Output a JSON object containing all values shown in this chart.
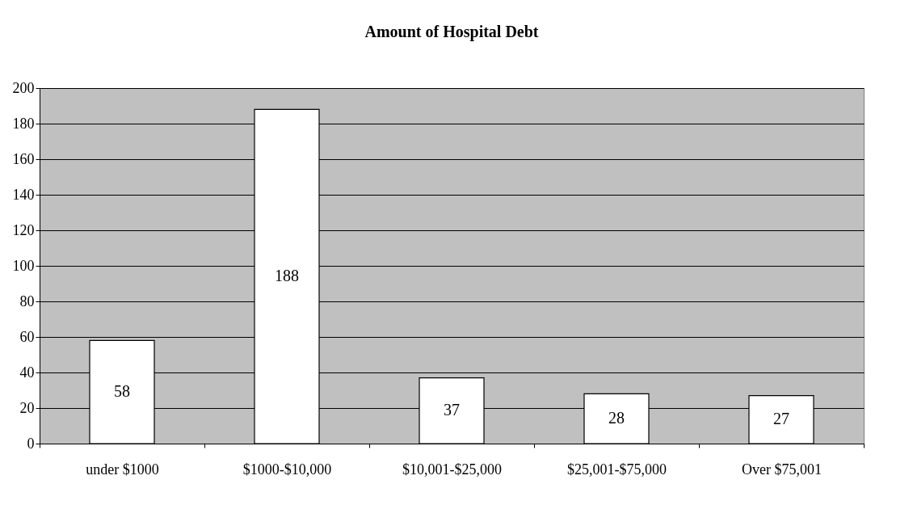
{
  "chart_data": {
    "type": "bar",
    "title": "Amount of Hospital Debt",
    "categories": [
      "under $1000",
      "$1000-$10,000",
      "$10,001-$25,000",
      "$25,001-$75,000",
      "Over $75,001"
    ],
    "values": [
      58,
      188,
      37,
      28,
      27
    ],
    "color": "#ffffff",
    "ylim": [
      0,
      200
    ],
    "yticks": [
      0,
      20,
      40,
      60,
      80,
      100,
      120,
      140,
      160,
      180,
      200
    ],
    "grid": "y",
    "data_labels": true
  }
}
